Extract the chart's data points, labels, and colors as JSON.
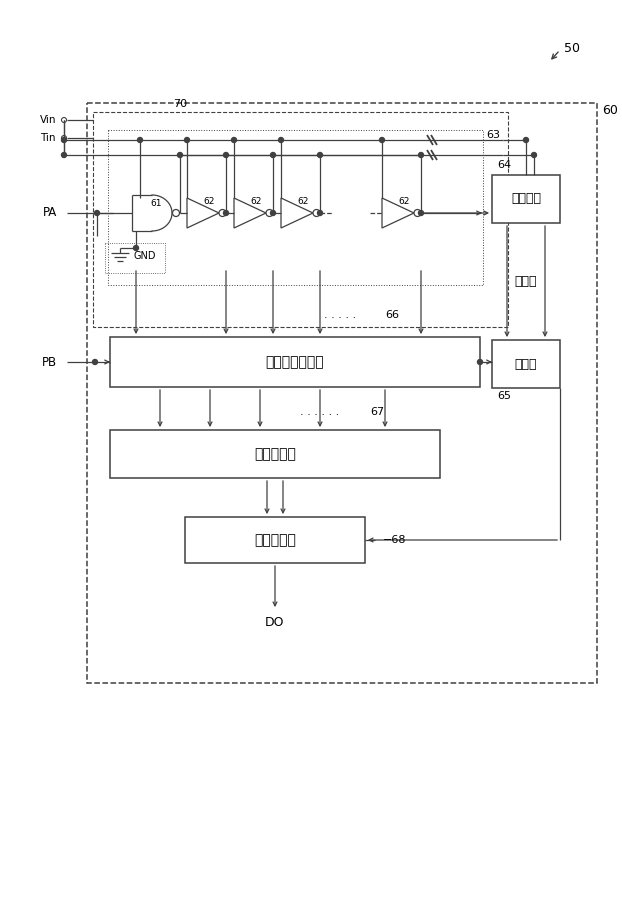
{
  "fig_width": 6.22,
  "fig_height": 8.98,
  "dpi": 100,
  "bg_color": "#ffffff",
  "line_color": "#404040",
  "label_50": "50",
  "label_60": "60",
  "label_70": "70",
  "label_61": "61",
  "label_62": "62",
  "label_63": "63",
  "label_64": "64",
  "label_65": "65",
  "label_66": "66",
  "label_67": "67",
  "label_68": "68",
  "label_Vin": "Vin",
  "label_Tin": "Tin",
  "label_PA": "PA",
  "label_PB": "PB",
  "label_GND": "GND",
  "label_counter": "カウンタ",
  "label_latch": "ラッチ",
  "label_pulse_sel": "パルスセレクタ",
  "label_encoder": "エンコーダ",
  "label_signal_proc": "信号処理部",
  "label_DO": "DO",
  "label_dots5": ". . . . .",
  "label_dots6": ". . . . . .",
  "label_dots3v": "・・・"
}
